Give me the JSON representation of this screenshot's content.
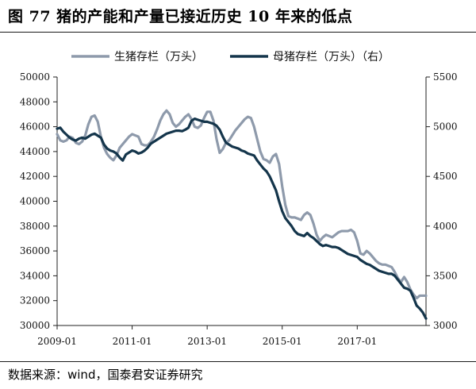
{
  "figure": {
    "title": "图 77  猪的产能和产量已接近历史 10 年来的低点",
    "source": "数据来源：wind，国泰君安证券研究"
  },
  "chart_data": {
    "type": "line",
    "xlabel": "",
    "ylabel": "",
    "x_tick_labels": [
      "2009-01",
      "2011-01",
      "2013-01",
      "2015-01",
      "2017-01"
    ],
    "x_tick_months": [
      0,
      24,
      48,
      72,
      96
    ],
    "xlim_months": [
      0,
      118
    ],
    "y_left": {
      "ylim": [
        30000,
        50000
      ],
      "ticks": [
        "30000",
        "32000",
        "34000",
        "36000",
        "38000",
        "40000",
        "42000",
        "44000",
        "46000",
        "48000",
        "50000"
      ]
    },
    "y_right": {
      "ylim": [
        3000,
        5500
      ],
      "ticks": [
        "3000",
        "3500",
        "4000",
        "4500",
        "5000",
        "5500"
      ]
    },
    "legend_position": "top",
    "grid": false,
    "series": [
      {
        "name": "生猪存栏（万头）",
        "axis": "left",
        "color": "#8e9aab",
        "values": [
          45400,
          44900,
          44800,
          44900,
          45200,
          45100,
          44700,
          44600,
          44800,
          45300,
          46200,
          46800,
          46900,
          46400,
          45200,
          44300,
          43800,
          43500,
          43300,
          43700,
          44300,
          44600,
          44900,
          45200,
          45400,
          45300,
          45200,
          44600,
          44500,
          44500,
          44800,
          45200,
          45800,
          46500,
          47000,
          47300,
          47000,
          46300,
          46000,
          46200,
          46500,
          46800,
          47000,
          46600,
          46000,
          45900,
          46100,
          46700,
          47200,
          47200,
          46500,
          45000,
          43900,
          44200,
          44700,
          44900,
          45300,
          45700,
          46000,
          46300,
          46600,
          46800,
          46700,
          46000,
          45000,
          44000,
          43400,
          43300,
          43100,
          43600,
          43800,
          43000,
          41200,
          39700,
          38800,
          38700,
          38700,
          38600,
          38500,
          38900,
          39100,
          38900,
          38200,
          37300,
          36800,
          37100,
          37300,
          37200,
          37100,
          37300,
          37500,
          37600,
          37600,
          37600,
          37700,
          37500,
          36800,
          35800,
          35700,
          36000,
          35800,
          35500,
          35200,
          35000,
          34900,
          34900,
          34800,
          34700,
          34300,
          33800,
          33500,
          33900,
          33500,
          32900,
          32500,
          32200,
          32400,
          32400,
          32400
        ]
      },
      {
        "name": "母猪存栏（万头）（右）",
        "axis": "right",
        "color": "#14354b",
        "values": [
          4980,
          4990,
          4950,
          4920,
          4890,
          4870,
          4860,
          4880,
          4890,
          4880,
          4900,
          4920,
          4930,
          4910,
          4890,
          4820,
          4780,
          4760,
          4750,
          4730,
          4690,
          4660,
          4720,
          4740,
          4760,
          4750,
          4730,
          4740,
          4760,
          4790,
          4830,
          4850,
          4870,
          4890,
          4910,
          4930,
          4940,
          4950,
          4960,
          4960,
          4955,
          4970,
          4990,
          5060,
          5080,
          5070,
          5060,
          5050,
          5050,
          5040,
          5030,
          5010,
          4970,
          4900,
          4840,
          4820,
          4800,
          4790,
          4780,
          4760,
          4750,
          4730,
          4720,
          4710,
          4660,
          4620,
          4580,
          4550,
          4500,
          4430,
          4360,
          4250,
          4150,
          4080,
          4040,
          4000,
          3950,
          3920,
          3910,
          3900,
          3930,
          3900,
          3880,
          3850,
          3820,
          3800,
          3810,
          3800,
          3790,
          3790,
          3780,
          3760,
          3740,
          3720,
          3710,
          3700,
          3690,
          3660,
          3640,
          3620,
          3610,
          3590,
          3570,
          3550,
          3540,
          3530,
          3520,
          3520,
          3500,
          3460,
          3420,
          3380,
          3370,
          3350,
          3280,
          3200,
          3170,
          3130,
          3070
        ]
      }
    ]
  }
}
